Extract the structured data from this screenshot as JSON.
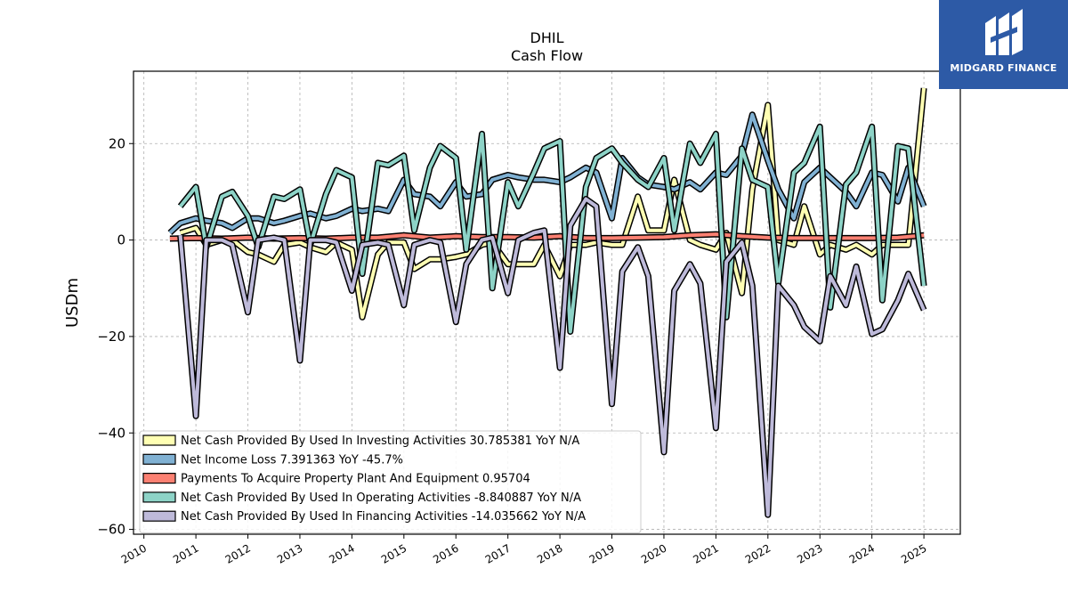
{
  "logo": {
    "text": "MIDGARD FINANCE"
  },
  "chart_data": {
    "type": "line",
    "title": "DHIL",
    "subtitle": "Cash Flow",
    "xlabel": "",
    "ylabel": "USDm",
    "xlim": [
      2009.8,
      2025.7
    ],
    "ylim": [
      -61,
      35
    ],
    "grid": true,
    "legend_position": "lower-left",
    "x_ticks": [
      "2010",
      "2011",
      "2012",
      "2013",
      "2014",
      "2015",
      "2016",
      "2017",
      "2018",
      "2019",
      "2020",
      "2021",
      "2022",
      "2023",
      "2024",
      "2025"
    ],
    "y_ticks": [
      20,
      0,
      -20,
      -40,
      -60
    ],
    "series": [
      {
        "name": "Net Cash Provided By Used In Investing Activities  30.785381 YoY N/A",
        "color": "#ffffb3",
        "x": [
          2010.7,
          2011.0,
          2011.2,
          2011.5,
          2011.7,
          2012.0,
          2012.2,
          2012.5,
          2012.7,
          2013.0,
          2013.2,
          2013.5,
          2013.7,
          2014.0,
          2014.2,
          2014.5,
          2014.7,
          2015.0,
          2015.2,
          2015.5,
          2015.7,
          2016.0,
          2016.2,
          2016.5,
          2016.7,
          2017.0,
          2017.2,
          2017.5,
          2017.7,
          2018.0,
          2018.2,
          2018.5,
          2018.7,
          2019.0,
          2019.2,
          2019.5,
          2019.7,
          2020.0,
          2020.2,
          2020.5,
          2020.7,
          2021.0,
          2021.2,
          2021.5,
          2021.7,
          2022.0,
          2022.2,
          2022.5,
          2022.7,
          2023.0,
          2023.2,
          2023.5,
          2023.7,
          2024.0,
          2024.2,
          2024.5,
          2024.7,
          2025.0
        ],
        "values": [
          1.5,
          2.5,
          -1.0,
          0.0,
          0.0,
          -2.5,
          -3.0,
          -4.5,
          -1.0,
          -0.5,
          -1.5,
          -2.5,
          -0.5,
          -2.0,
          -16.0,
          -3.0,
          -0.5,
          -0.5,
          -6.0,
          -4.0,
          -4.0,
          -3.5,
          -3.0,
          -1.0,
          -0.5,
          -5.0,
          -5.0,
          -5.0,
          -1.0,
          -7.5,
          -1.0,
          -1.0,
          -0.5,
          -1.0,
          -1.0,
          9.0,
          2.0,
          2.0,
          12.5,
          0.0,
          -1.0,
          -2.0,
          1.5,
          -11.0,
          10.5,
          28.0,
          0.0,
          -1.0,
          7.0,
          -3.0,
          -1.0,
          -2.0,
          -1.0,
          -3.0,
          -1.0,
          -1.0,
          -1.0,
          31.5
        ]
      },
      {
        "name": "Net Income Loss  7.391363 YoY -45.7%",
        "color": "#80b1d3",
        "x": [
          2010.5,
          2010.7,
          2011.0,
          2011.2,
          2011.5,
          2011.7,
          2012.0,
          2012.2,
          2012.5,
          2012.7,
          2013.0,
          2013.2,
          2013.5,
          2013.7,
          2014.0,
          2014.2,
          2014.5,
          2014.7,
          2015.0,
          2015.2,
          2015.5,
          2015.7,
          2016.0,
          2016.2,
          2016.5,
          2016.7,
          2017.0,
          2017.2,
          2017.5,
          2017.7,
          2018.0,
          2018.2,
          2018.5,
          2018.7,
          2019.0,
          2019.2,
          2019.5,
          2019.7,
          2020.0,
          2020.2,
          2020.5,
          2020.7,
          2021.0,
          2021.2,
          2021.5,
          2021.7,
          2022.0,
          2022.2,
          2022.5,
          2022.7,
          2023.0,
          2023.2,
          2023.5,
          2023.7,
          2024.0,
          2024.2,
          2024.5,
          2024.7,
          2025.0
        ],
        "values": [
          1.5,
          3.5,
          4.5,
          4.0,
          3.5,
          2.5,
          4.5,
          4.5,
          3.5,
          4.0,
          5.0,
          5.5,
          4.5,
          5.0,
          6.5,
          6.0,
          6.5,
          6.0,
          12.5,
          9.5,
          9.0,
          7.0,
          12.0,
          9.0,
          9.5,
          12.5,
          13.5,
          13.0,
          12.5,
          12.5,
          12.0,
          13.0,
          15.0,
          14.0,
          4.5,
          17.0,
          13.0,
          11.5,
          11.0,
          10.5,
          12.0,
          10.5,
          14.0,
          13.5,
          17.5,
          26.0,
          16.5,
          10.5,
          4.5,
          12.0,
          15.0,
          13.0,
          10.0,
          7.0,
          14.0,
          13.5,
          8.0,
          15.0,
          7.0
        ]
      },
      {
        "name": "Payments To Acquire Property Plant And Equipment  0.95704",
        "color": "#fb8072",
        "x": [
          2010.5,
          2011.0,
          2011.5,
          2012.0,
          2012.5,
          2013.0,
          2013.5,
          2014.0,
          2014.5,
          2015.0,
          2015.5,
          2016.0,
          2016.5,
          2017.0,
          2017.5,
          2018.0,
          2018.5,
          2019.0,
          2019.5,
          2020.0,
          2020.5,
          2021.0,
          2021.5,
          2022.0,
          2022.5,
          2023.0,
          2023.5,
          2024.0,
          2024.5,
          2025.0
        ],
        "values": [
          0.3,
          0.4,
          0.3,
          0.5,
          0.3,
          0.4,
          0.3,
          0.5,
          0.5,
          1.0,
          0.5,
          0.8,
          0.6,
          0.6,
          0.5,
          0.8,
          0.4,
          0.4,
          0.5,
          0.6,
          1.0,
          1.2,
          0.8,
          0.5,
          0.4,
          0.4,
          0.4,
          0.4,
          0.5,
          1.0
        ]
      },
      {
        "name": "Net Cash Provided By Used In Operating Activities  -8.840887 YoY N/A",
        "color": "#8dd3c7",
        "x": [
          2010.7,
          2011.0,
          2011.2,
          2011.5,
          2011.7,
          2012.0,
          2012.2,
          2012.5,
          2012.7,
          2013.0,
          2013.2,
          2013.5,
          2013.7,
          2014.0,
          2014.2,
          2014.5,
          2014.7,
          2015.0,
          2015.2,
          2015.5,
          2015.7,
          2016.0,
          2016.2,
          2016.5,
          2016.7,
          2017.0,
          2017.2,
          2017.5,
          2017.7,
          2018.0,
          2018.2,
          2018.5,
          2018.7,
          2019.0,
          2019.2,
          2019.5,
          2019.7,
          2020.0,
          2020.2,
          2020.5,
          2020.7,
          2021.0,
          2021.2,
          2021.5,
          2021.7,
          2022.0,
          2022.2,
          2022.5,
          2022.7,
          2023.0,
          2023.2,
          2023.5,
          2023.7,
          2024.0,
          2024.2,
          2024.5,
          2024.7,
          2025.0
        ],
        "values": [
          7.0,
          11.0,
          -1.5,
          9.0,
          10.0,
          5.0,
          -1.5,
          9.0,
          8.5,
          10.5,
          -1.0,
          9.5,
          14.5,
          13.0,
          -7.0,
          16.0,
          15.5,
          17.5,
          2.0,
          15.0,
          19.5,
          17.0,
          -2.0,
          22.0,
          -10.0,
          12.0,
          7.0,
          14.0,
          19.0,
          20.5,
          -19.0,
          11.0,
          17.0,
          19.0,
          16.0,
          12.5,
          11.0,
          17.0,
          2.0,
          20.0,
          16.0,
          22.0,
          -16.0,
          19.0,
          12.5,
          11.0,
          -9.0,
          14.0,
          16.0,
          23.5,
          -14.0,
          11.5,
          14.0,
          23.5,
          -12.5,
          19.5,
          19.0,
          -9.5
        ]
      },
      {
        "name": "Net Cash Provided By Used In Financing Activities  -14.035662 YoY N/A",
        "color": "#bebada",
        "x": [
          2010.7,
          2011.0,
          2011.2,
          2011.5,
          2011.7,
          2012.0,
          2012.2,
          2012.5,
          2012.7,
          2013.0,
          2013.2,
          2013.5,
          2013.7,
          2014.0,
          2014.2,
          2014.5,
          2014.7,
          2015.0,
          2015.2,
          2015.5,
          2015.7,
          2016.0,
          2016.2,
          2016.5,
          2016.7,
          2017.0,
          2017.2,
          2017.5,
          2017.7,
          2018.0,
          2018.2,
          2018.5,
          2018.7,
          2019.0,
          2019.2,
          2019.5,
          2019.7,
          2020.0,
          2020.2,
          2020.5,
          2020.7,
          2021.0,
          2021.2,
          2021.5,
          2021.7,
          2022.0,
          2022.2,
          2022.5,
          2022.7,
          2023.0,
          2023.2,
          2023.5,
          2023.7,
          2024.0,
          2024.2,
          2024.5,
          2024.7,
          2025.0
        ],
        "values": [
          1.0,
          -36.5,
          0.0,
          0.0,
          -1.0,
          -15.0,
          0.0,
          0.5,
          0.0,
          -25.0,
          0.0,
          0.0,
          -0.5,
          -10.5,
          -1.0,
          -0.5,
          -1.0,
          -13.5,
          -1.0,
          0.0,
          -0.5,
          -17.0,
          -5.0,
          0.0,
          0.5,
          -11.0,
          0.0,
          1.5,
          2.0,
          -26.5,
          3.0,
          8.5,
          7.0,
          -34.0,
          -6.5,
          -1.5,
          -7.5,
          -44.0,
          -10.5,
          -5.0,
          -9.0,
          -39.0,
          -4.5,
          -0.5,
          -9.5,
          -57.0,
          -9.5,
          -13.5,
          -18.0,
          -21.0,
          -7.5,
          -13.5,
          -5.5,
          -19.5,
          -18.5,
          -12.5,
          -7.0,
          -14.5
        ]
      }
    ]
  }
}
